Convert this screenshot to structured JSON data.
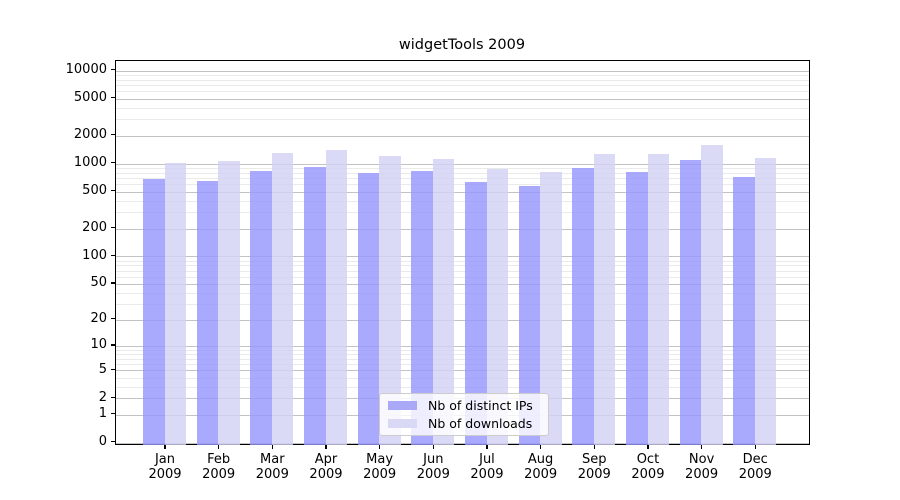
{
  "title": "widgetTools 2009",
  "chart_data": {
    "type": "bar",
    "title": "widgetTools 2009",
    "yscale": "log1p",
    "grid": true,
    "legend_position": "bottom-center",
    "x_year": "2009",
    "x_months": [
      "Jan",
      "Feb",
      "Mar",
      "Apr",
      "May",
      "Jun",
      "Jul",
      "Aug",
      "Sep",
      "Oct",
      "Nov",
      "Dec"
    ],
    "categories": [
      "Jan 2009",
      "Feb 2009",
      "Mar 2009",
      "Apr 2009",
      "May 2009",
      "Jun 2009",
      "Jul 2009",
      "Aug 2009",
      "Sep 2009",
      "Oct 2009",
      "Nov 2009",
      "Dec 2009"
    ],
    "yticks": [
      0,
      1,
      2,
      5,
      10,
      20,
      50,
      100,
      200,
      500,
      1000,
      2000,
      5000,
      10000
    ],
    "ylim": [
      0,
      13000
    ],
    "series": [
      {
        "name": "Nb of distinct IPs",
        "color": "#a9a9f8",
        "fill": "rgba(150,150,252,0.82)",
        "values": [
          690,
          650,
          840,
          920,
          800,
          840,
          640,
          580,
          905,
          815,
          1090,
          710
        ]
      },
      {
        "name": "Nb of downloads",
        "color": "#d9d9f5",
        "fill": "rgba(210,210,245,0.82)",
        "values": [
          1020,
          1060,
          1300,
          1400,
          1220,
          1120,
          880,
          820,
          1260,
          1260,
          1580,
          1150
        ]
      }
    ]
  },
  "colors": {
    "grid_major": "#c3c3c3",
    "grid_minor": "#eaeaea",
    "spine": "#000000",
    "background": "#ffffff"
  }
}
